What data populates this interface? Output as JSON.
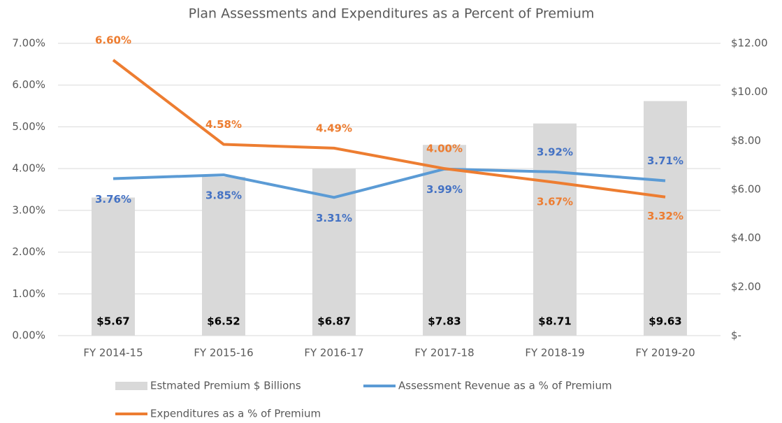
{
  "chart_data": {
    "type": "bar-line",
    "title": "Plan Assessments and Expenditures as a Percent of Premium",
    "categories": [
      "FY 2014-15",
      "FY 2015-16",
      "FY 2016-17",
      "FY 2017-18",
      "FY 2018-19",
      "FY 2019-20"
    ],
    "series": [
      {
        "name": "Estmated Premium $ Billions",
        "type": "bar",
        "axis": "y2",
        "color": "#d9d9d9",
        "label_color": "#000000",
        "values": [
          5.67,
          6.52,
          6.87,
          7.83,
          8.71,
          9.63
        ],
        "value_labels": [
          "$5.67",
          "$6.52",
          "$6.87",
          "$7.83",
          "$8.71",
          "$9.63"
        ]
      },
      {
        "name": "Assessment Revenue as a % of Premium",
        "type": "line",
        "axis": "y",
        "color": "#5b9bd5",
        "label_color": "#4472c4",
        "values": [
          3.76,
          3.85,
          3.31,
          3.99,
          3.92,
          3.71
        ],
        "value_labels": [
          "3.76%",
          "3.85%",
          "3.31%",
          "3.99%",
          "3.92%",
          "3.71%"
        ]
      },
      {
        "name": "Expenditures  as a % of Premium",
        "type": "line",
        "axis": "y",
        "color": "#ed7d31",
        "label_color": "#ed7d31",
        "values": [
          6.6,
          4.58,
          4.49,
          4.0,
          3.67,
          3.32
        ],
        "value_labels": [
          "6.60%",
          "4.58%",
          "4.49%",
          "4.00%",
          "3.67%",
          "3.32%"
        ]
      }
    ],
    "ylim": [
      0,
      7
    ],
    "yticks": [
      {
        "value": 0,
        "label": "0.00%"
      },
      {
        "value": 1,
        "label": "1.00%"
      },
      {
        "value": 2,
        "label": "2.00%"
      },
      {
        "value": 3,
        "label": "3.00%"
      },
      {
        "value": 4,
        "label": "4.00%"
      },
      {
        "value": 5,
        "label": "5.00%"
      },
      {
        "value": 6,
        "label": "6.00%"
      },
      {
        "value": 7,
        "label": "7.00%"
      }
    ],
    "y2lim": [
      0,
      12
    ],
    "y2ticks": [
      {
        "value": 0,
        "label": "$-"
      },
      {
        "value": 2,
        "label": "$2.00"
      },
      {
        "value": 4,
        "label": "$4.00"
      },
      {
        "value": 6,
        "label": "$6.00"
      },
      {
        "value": 8,
        "label": "$8.00"
      },
      {
        "value": 10,
        "label": "$10.00"
      },
      {
        "value": 12,
        "label": "$12.00"
      }
    ],
    "grid": true,
    "legend": "bottom"
  }
}
